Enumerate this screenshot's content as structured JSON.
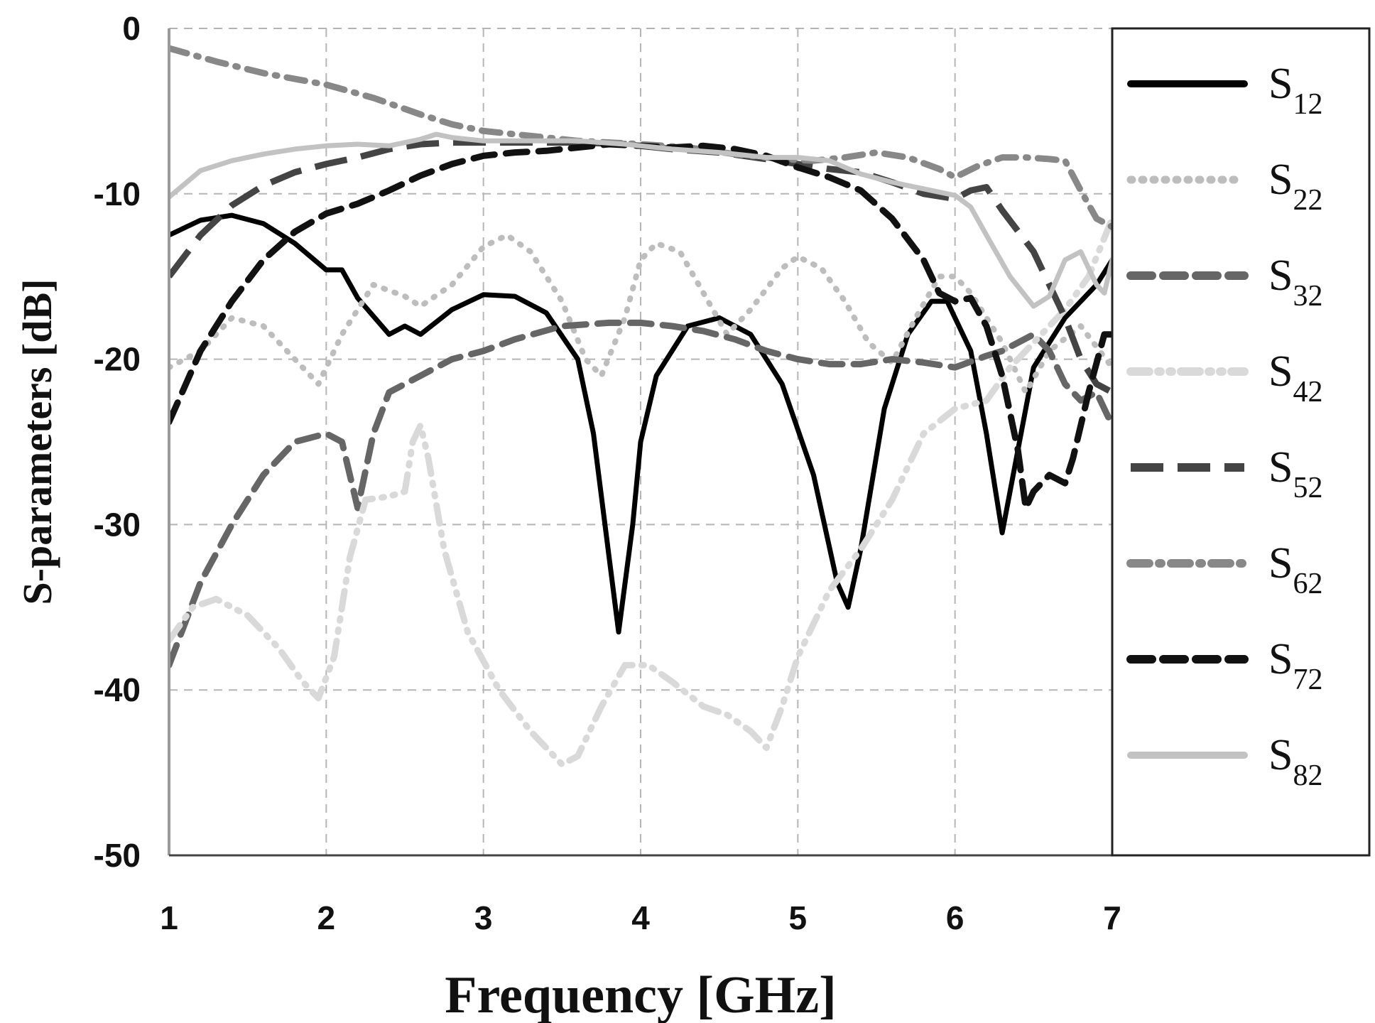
{
  "chart_data": {
    "type": "line",
    "title": "",
    "xlabel": "Frequency [GHz]",
    "ylabel": "S-parameters [dB]",
    "xlim": [
      1,
      7
    ],
    "ylim": [
      -50,
      0
    ],
    "xticks": [
      "1",
      "2",
      "3",
      "4",
      "5",
      "6",
      "7"
    ],
    "yticks": [
      "0",
      "-10",
      "-20",
      "-30",
      "-40",
      "-50"
    ],
    "grid": true,
    "legend_position": "right",
    "series": [
      {
        "name_main": "S",
        "name_sub": "12",
        "color": "#000000",
        "dash": "solid",
        "points": [
          [
            1.0,
            -12.5
          ],
          [
            1.2,
            -11.6
          ],
          [
            1.4,
            -11.3
          ],
          [
            1.6,
            -11.8
          ],
          [
            1.8,
            -13.0
          ],
          [
            2.0,
            -14.6
          ],
          [
            2.1,
            -14.6
          ],
          [
            2.2,
            -16.3
          ],
          [
            2.4,
            -18.5
          ],
          [
            2.5,
            -18.0
          ],
          [
            2.6,
            -18.5
          ],
          [
            2.8,
            -17.0
          ],
          [
            3.0,
            -16.1
          ],
          [
            3.2,
            -16.2
          ],
          [
            3.4,
            -17.2
          ],
          [
            3.6,
            -20.0
          ],
          [
            3.7,
            -24.5
          ],
          [
            3.8,
            -32.0
          ],
          [
            3.86,
            -36.5
          ],
          [
            3.95,
            -30.0
          ],
          [
            4.0,
            -25.0
          ],
          [
            4.1,
            -21.0
          ],
          [
            4.3,
            -18.0
          ],
          [
            4.5,
            -17.5
          ],
          [
            4.7,
            -18.5
          ],
          [
            4.9,
            -21.5
          ],
          [
            5.1,
            -27.0
          ],
          [
            5.25,
            -33.5
          ],
          [
            5.32,
            -35.0
          ],
          [
            5.4,
            -31.5
          ],
          [
            5.55,
            -23.0
          ],
          [
            5.7,
            -18.5
          ],
          [
            5.85,
            -16.5
          ],
          [
            5.95,
            -16.5
          ],
          [
            6.1,
            -19.5
          ],
          [
            6.2,
            -24.5
          ],
          [
            6.3,
            -30.5
          ],
          [
            6.4,
            -25.5
          ],
          [
            6.5,
            -20.5
          ],
          [
            6.7,
            -17.5
          ],
          [
            6.9,
            -15.5
          ],
          [
            7.0,
            -14.0
          ]
        ]
      },
      {
        "name_main": "S",
        "name_sub": "22",
        "color": "#bdbdbd",
        "dash": "dotted",
        "points": [
          [
            1.0,
            -20.5
          ],
          [
            1.2,
            -19.5
          ],
          [
            1.4,
            -17.5
          ],
          [
            1.6,
            -18.0
          ],
          [
            1.8,
            -20.0
          ],
          [
            1.95,
            -21.5
          ],
          [
            2.1,
            -18.5
          ],
          [
            2.3,
            -15.5
          ],
          [
            2.5,
            -16.2
          ],
          [
            2.6,
            -16.8
          ],
          [
            2.8,
            -15.5
          ],
          [
            3.0,
            -13.2
          ],
          [
            3.15,
            -12.5
          ],
          [
            3.3,
            -13.5
          ],
          [
            3.5,
            -16.5
          ],
          [
            3.65,
            -20.0
          ],
          [
            3.75,
            -21.0
          ],
          [
            3.9,
            -17.5
          ],
          [
            4.0,
            -14.0
          ],
          [
            4.1,
            -13.0
          ],
          [
            4.25,
            -13.5
          ],
          [
            4.4,
            -16.0
          ],
          [
            4.55,
            -18.5
          ],
          [
            4.7,
            -17.0
          ],
          [
            4.9,
            -14.5
          ],
          [
            5.0,
            -13.8
          ],
          [
            5.15,
            -14.5
          ],
          [
            5.3,
            -16.5
          ],
          [
            5.45,
            -19.0
          ],
          [
            5.6,
            -20.2
          ],
          [
            5.75,
            -17.5
          ],
          [
            5.9,
            -15.0
          ],
          [
            6.0,
            -15.0
          ],
          [
            6.1,
            -16.0
          ],
          [
            6.3,
            -19.0
          ],
          [
            6.45,
            -22.0
          ],
          [
            6.6,
            -19.5
          ],
          [
            6.8,
            -18.0
          ],
          [
            7.0,
            -20.5
          ]
        ]
      },
      {
        "name_main": "S",
        "name_sub": "32",
        "color": "#666666",
        "dash": "dash",
        "points": [
          [
            1.0,
            -38.5
          ],
          [
            1.2,
            -33.5
          ],
          [
            1.4,
            -30.0
          ],
          [
            1.6,
            -27.0
          ],
          [
            1.8,
            -25.0
          ],
          [
            2.0,
            -24.5
          ],
          [
            2.1,
            -25.0
          ],
          [
            2.2,
            -29.0
          ],
          [
            2.3,
            -24.5
          ],
          [
            2.4,
            -22.0
          ],
          [
            2.6,
            -21.0
          ],
          [
            2.8,
            -20.0
          ],
          [
            3.0,
            -19.5
          ],
          [
            3.2,
            -18.8
          ],
          [
            3.5,
            -18.0
          ],
          [
            3.8,
            -17.8
          ],
          [
            4.0,
            -17.8
          ],
          [
            4.2,
            -18.0
          ],
          [
            4.4,
            -18.3
          ],
          [
            4.6,
            -18.8
          ],
          [
            4.8,
            -19.5
          ],
          [
            5.0,
            -20.0
          ],
          [
            5.2,
            -20.3
          ],
          [
            5.4,
            -20.3
          ],
          [
            5.6,
            -20.0
          ],
          [
            5.8,
            -20.2
          ],
          [
            6.0,
            -20.5
          ],
          [
            6.2,
            -19.8
          ],
          [
            6.3,
            -19.5
          ],
          [
            6.5,
            -18.5
          ],
          [
            6.6,
            -19.5
          ],
          [
            6.7,
            -21.5
          ],
          [
            6.8,
            -22.5
          ],
          [
            6.9,
            -22.0
          ],
          [
            7.0,
            -24.0
          ]
        ]
      },
      {
        "name_main": "S",
        "name_sub": "42",
        "color": "#d9d9d9",
        "dash": "dashdotdot",
        "points": [
          [
            1.0,
            -37.0
          ],
          [
            1.15,
            -35.0
          ],
          [
            1.3,
            -34.5
          ],
          [
            1.5,
            -35.5
          ],
          [
            1.7,
            -37.5
          ],
          [
            1.85,
            -39.5
          ],
          [
            1.95,
            -40.5
          ],
          [
            2.05,
            -38.0
          ],
          [
            2.15,
            -32.0
          ],
          [
            2.25,
            -28.5
          ],
          [
            2.4,
            -28.3
          ],
          [
            2.5,
            -28.0
          ],
          [
            2.55,
            -25.0
          ],
          [
            2.6,
            -24.0
          ],
          [
            2.65,
            -26.0
          ],
          [
            2.75,
            -31.5
          ],
          [
            2.9,
            -36.5
          ],
          [
            3.1,
            -40.0
          ],
          [
            3.3,
            -42.5
          ],
          [
            3.5,
            -44.5
          ],
          [
            3.6,
            -44.0
          ],
          [
            3.75,
            -41.0
          ],
          [
            3.9,
            -38.5
          ],
          [
            4.05,
            -38.5
          ],
          [
            4.2,
            -39.5
          ],
          [
            4.4,
            -41.0
          ],
          [
            4.55,
            -41.5
          ],
          [
            4.7,
            -42.5
          ],
          [
            4.8,
            -43.5
          ],
          [
            4.9,
            -41.0
          ],
          [
            5.0,
            -38.0
          ],
          [
            5.2,
            -34.0
          ],
          [
            5.4,
            -31.5
          ],
          [
            5.6,
            -28.5
          ],
          [
            5.8,
            -24.5
          ],
          [
            6.0,
            -23.0
          ],
          [
            6.2,
            -22.5
          ],
          [
            6.35,
            -20.5
          ],
          [
            6.5,
            -19.0
          ],
          [
            6.7,
            -17.0
          ],
          [
            6.85,
            -15.0
          ],
          [
            7.0,
            -11.5
          ]
        ]
      },
      {
        "name_main": "S",
        "name_sub": "52",
        "color": "#444444",
        "dash": "longdash",
        "points": [
          [
            1.0,
            -15.0
          ],
          [
            1.2,
            -12.5
          ],
          [
            1.4,
            -10.7
          ],
          [
            1.6,
            -9.5
          ],
          [
            1.8,
            -8.7
          ],
          [
            2.0,
            -8.2
          ],
          [
            2.2,
            -7.8
          ],
          [
            2.4,
            -7.3
          ],
          [
            2.6,
            -7.0
          ],
          [
            2.8,
            -6.9
          ],
          [
            3.0,
            -6.9
          ],
          [
            3.3,
            -6.9
          ],
          [
            3.6,
            -6.9
          ],
          [
            3.9,
            -7.0
          ],
          [
            4.2,
            -7.3
          ],
          [
            4.5,
            -7.5
          ],
          [
            4.8,
            -7.9
          ],
          [
            5.0,
            -8.2
          ],
          [
            5.2,
            -8.5
          ],
          [
            5.4,
            -8.7
          ],
          [
            5.6,
            -9.3
          ],
          [
            5.8,
            -10.0
          ],
          [
            6.0,
            -10.3
          ],
          [
            6.1,
            -9.8
          ],
          [
            6.2,
            -9.6
          ],
          [
            6.3,
            -11.0
          ],
          [
            6.5,
            -13.5
          ],
          [
            6.7,
            -17.5
          ],
          [
            6.8,
            -20.0
          ],
          [
            6.9,
            -21.5
          ],
          [
            7.0,
            -22.0
          ]
        ]
      },
      {
        "name_main": "S",
        "name_sub": "62",
        "color": "#888888",
        "dash": "dashdot",
        "points": [
          [
            1.0,
            -1.2
          ],
          [
            1.3,
            -2.0
          ],
          [
            1.6,
            -2.7
          ],
          [
            2.0,
            -3.4
          ],
          [
            2.3,
            -4.2
          ],
          [
            2.6,
            -5.2
          ],
          [
            2.8,
            -5.8
          ],
          [
            3.0,
            -6.2
          ],
          [
            3.2,
            -6.4
          ],
          [
            3.4,
            -6.6
          ],
          [
            3.6,
            -6.8
          ],
          [
            3.8,
            -6.9
          ],
          [
            4.0,
            -7.0
          ],
          [
            4.3,
            -7.2
          ],
          [
            4.6,
            -7.6
          ],
          [
            4.9,
            -7.9
          ],
          [
            5.1,
            -8.0
          ],
          [
            5.3,
            -7.8
          ],
          [
            5.5,
            -7.5
          ],
          [
            5.7,
            -7.8
          ],
          [
            5.9,
            -8.5
          ],
          [
            6.0,
            -9.0
          ],
          [
            6.15,
            -8.3
          ],
          [
            6.3,
            -7.8
          ],
          [
            6.45,
            -7.8
          ],
          [
            6.6,
            -7.9
          ],
          [
            6.7,
            -8.0
          ],
          [
            6.8,
            -9.8
          ],
          [
            6.9,
            -11.5
          ],
          [
            7.0,
            -12.0
          ]
        ]
      },
      {
        "name_main": "S",
        "name_sub": "72",
        "color": "#111111",
        "dash": "dash",
        "points": [
          [
            1.0,
            -23.8
          ],
          [
            1.2,
            -19.5
          ],
          [
            1.4,
            -16.5
          ],
          [
            1.6,
            -14.0
          ],
          [
            1.8,
            -12.3
          ],
          [
            2.0,
            -11.2
          ],
          [
            2.2,
            -10.6
          ],
          [
            2.4,
            -9.8
          ],
          [
            2.6,
            -8.9
          ],
          [
            2.8,
            -8.2
          ],
          [
            3.0,
            -7.7
          ],
          [
            3.2,
            -7.5
          ],
          [
            3.4,
            -7.4
          ],
          [
            3.6,
            -7.2
          ],
          [
            3.8,
            -7.0
          ],
          [
            4.0,
            -7.1
          ],
          [
            4.2,
            -7.2
          ],
          [
            4.4,
            -7.1
          ],
          [
            4.6,
            -7.3
          ],
          [
            4.8,
            -7.7
          ],
          [
            5.0,
            -8.4
          ],
          [
            5.2,
            -9.0
          ],
          [
            5.4,
            -9.8
          ],
          [
            5.6,
            -11.5
          ],
          [
            5.8,
            -14.0
          ],
          [
            5.9,
            -16.0
          ],
          [
            6.0,
            -16.5
          ],
          [
            6.1,
            -16.3
          ],
          [
            6.2,
            -18.0
          ],
          [
            6.3,
            -21.0
          ],
          [
            6.4,
            -25.5
          ],
          [
            6.45,
            -29.0
          ],
          [
            6.5,
            -28.0
          ],
          [
            6.6,
            -27.0
          ],
          [
            6.7,
            -27.5
          ],
          [
            6.75,
            -26.0
          ],
          [
            6.85,
            -22.0
          ],
          [
            6.95,
            -18.5
          ],
          [
            7.0,
            -18.5
          ]
        ]
      },
      {
        "name_main": "S",
        "name_sub": "82",
        "color": "#c2c2c2",
        "dash": "solid",
        "points": [
          [
            1.0,
            -10.2
          ],
          [
            1.2,
            -8.6
          ],
          [
            1.4,
            -8.0
          ],
          [
            1.6,
            -7.6
          ],
          [
            1.8,
            -7.3
          ],
          [
            2.0,
            -7.1
          ],
          [
            2.2,
            -7.0
          ],
          [
            2.4,
            -7.1
          ],
          [
            2.6,
            -6.7
          ],
          [
            2.7,
            -6.4
          ],
          [
            2.8,
            -6.6
          ],
          [
            3.0,
            -6.8
          ],
          [
            3.3,
            -6.8
          ],
          [
            3.6,
            -6.8
          ],
          [
            3.9,
            -7.0
          ],
          [
            4.2,
            -7.3
          ],
          [
            4.5,
            -7.5
          ],
          [
            4.8,
            -7.8
          ],
          [
            5.0,
            -7.8
          ],
          [
            5.2,
            -8.0
          ],
          [
            5.4,
            -8.8
          ],
          [
            5.6,
            -9.3
          ],
          [
            5.8,
            -9.7
          ],
          [
            6.0,
            -10.1
          ],
          [
            6.1,
            -10.8
          ],
          [
            6.2,
            -12.5
          ],
          [
            6.35,
            -15.0
          ],
          [
            6.5,
            -16.8
          ],
          [
            6.6,
            -16.2
          ],
          [
            6.7,
            -14.0
          ],
          [
            6.8,
            -13.5
          ],
          [
            6.9,
            -15.5
          ],
          [
            6.95,
            -16.0
          ],
          [
            7.0,
            -14.0
          ]
        ]
      }
    ]
  }
}
